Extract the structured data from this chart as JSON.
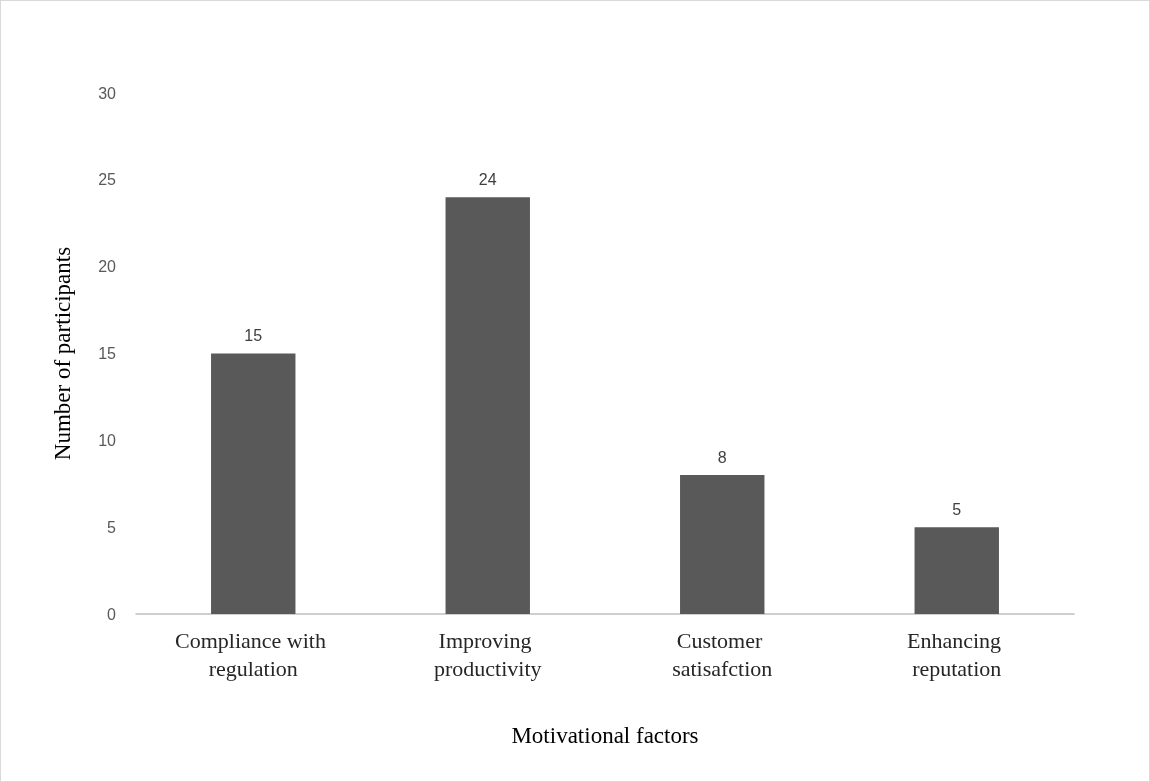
{
  "chart_data": {
    "type": "bar",
    "xlabel": "Motivational factors",
    "ylabel": "Number of participants",
    "categories": [
      "Compliance with regulation",
      "Improving productivity",
      "Customer satisafction",
      "Enhancing reputation"
    ],
    "values": [
      15,
      24,
      8,
      5
    ],
    "color": "#595959",
    "ylim": [
      0,
      30
    ],
    "yticks": [
      0,
      5,
      10,
      15,
      20,
      25,
      30
    ],
    "grid": false,
    "data_labels": true
  }
}
